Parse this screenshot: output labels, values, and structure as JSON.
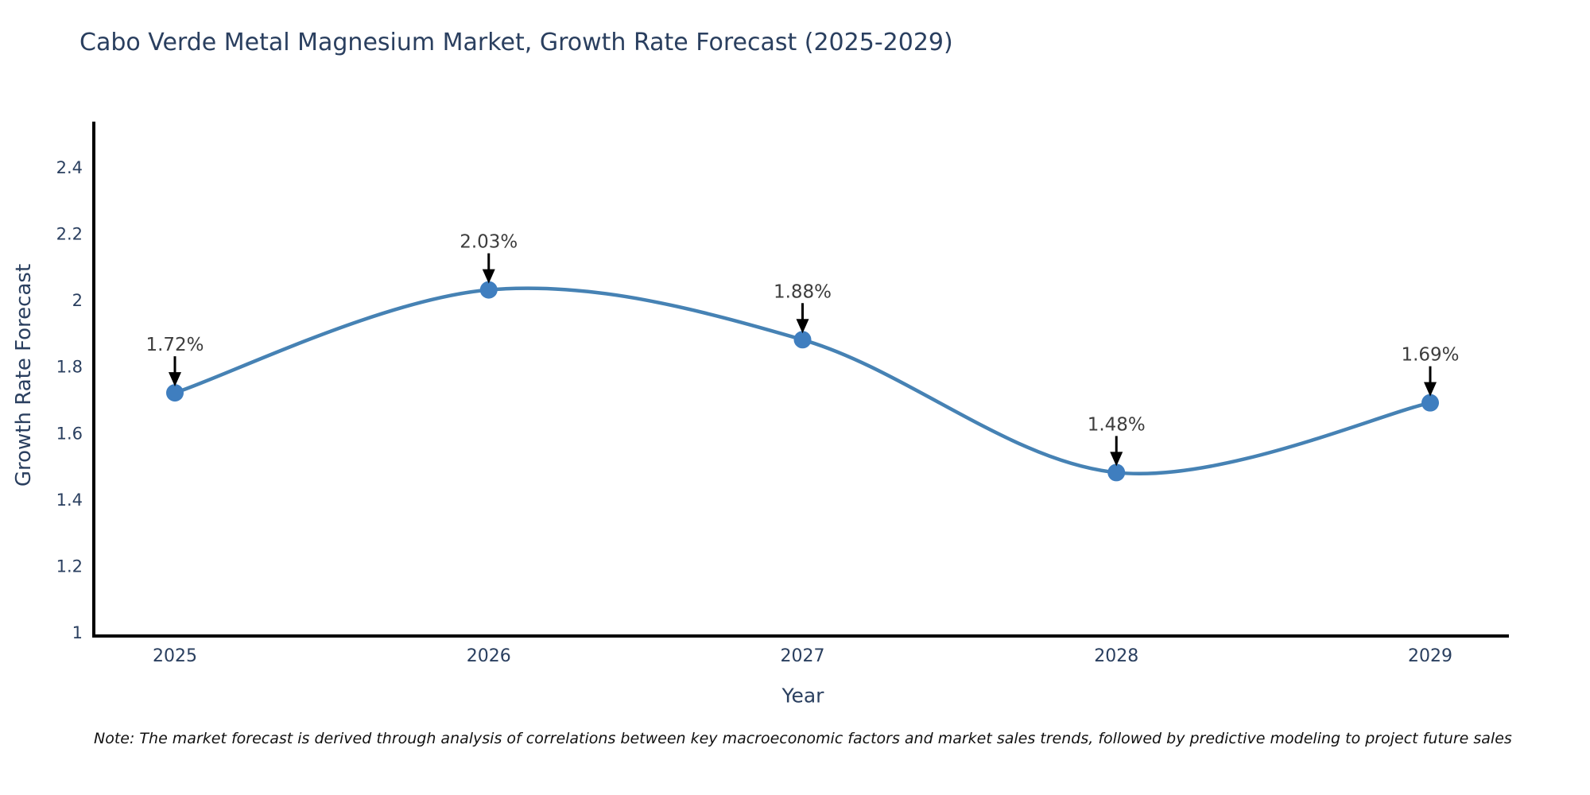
{
  "title": "Cabo Verde Metal Magnesium Market, Growth Rate Forecast (2025-2029)",
  "note": "Note: The market forecast is derived through analysis of correlations between key macroeconomic factors and market sales trends, followed by predictive modeling to project future sales",
  "chart_data": {
    "type": "line",
    "line_shape": "spline",
    "title": "Cabo Verde Metal Magnesium Market, Growth Rate Forecast (2025-2029)",
    "xlabel": "Year",
    "ylabel": "Growth Rate Forecast",
    "categories": [
      "2025",
      "2026",
      "2027",
      "2028",
      "2029"
    ],
    "values": [
      1.72,
      2.03,
      1.88,
      1.48,
      1.69
    ],
    "point_labels": [
      "1.72%",
      "2.03%",
      "1.88%",
      "1.48%",
      "1.69%"
    ],
    "yticks": [
      "1",
      "1.2",
      "1.4",
      "1.6",
      "1.8",
      "2",
      "2.2",
      "2.4"
    ],
    "ytick_values": [
      1,
      1.2,
      1.4,
      1.6,
      1.8,
      2,
      2.2,
      2.4
    ],
    "ylim": [
      1,
      2.52
    ],
    "grid": false,
    "legend": "none",
    "annotations": "black down-arrows from percent labels to markers",
    "colors": {
      "line": "#4682b4",
      "marker": "#3f7ebf",
      "arrow": "#000000",
      "axis": "#000000",
      "axis_text": "#2a3f5f",
      "annotation_text": "#3d3d3d",
      "title_text": "#2a3f5f",
      "note_text": "#111111",
      "background": "#ffffff"
    }
  }
}
